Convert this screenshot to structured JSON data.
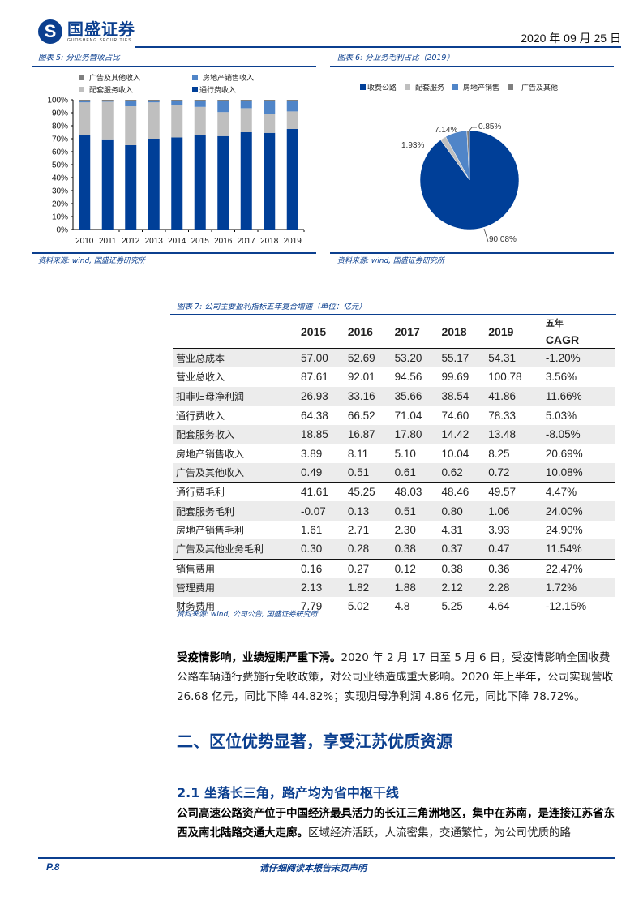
{
  "header": {
    "logo_cn": "国盛证券",
    "logo_en": "GUOSHENG SECURITIES",
    "date": "2020 年 09 月 25 日"
  },
  "figure5": {
    "title": "图表 5:  分业务营收占比",
    "source": "资料来源:  wind,  国盛证券研究所",
    "legend": [
      "广告及其他收入",
      "房地产销售收入",
      "配套服务收入",
      "通行费收入"
    ]
  },
  "figure6": {
    "title": "图表 6:  分业务毛利占比（2019）",
    "source": "资料来源:  wind,  国盛证券研究所",
    "legend": [
      "收费公路",
      "配套服务",
      "房地产销售",
      "广告及其他"
    ]
  },
  "chart_data": [
    {
      "type": "bar",
      "stacked": true,
      "title": "分业务营收占比",
      "categories": [
        "2010",
        "2011",
        "2012",
        "2013",
        "2014",
        "2015",
        "2016",
        "2017",
        "2018",
        "2019"
      ],
      "yticks": [
        "0%",
        "10%",
        "20%",
        "30%",
        "40%",
        "50%",
        "60%",
        "70%",
        "80%",
        "90%",
        "100%"
      ],
      "ylim": [
        0,
        100
      ],
      "series": [
        {
          "name": "通行费收入",
          "color": "#003f98",
          "values": [
            73,
            69.5,
            65,
            70,
            71,
            73,
            72,
            75,
            74.5,
            77.5
          ]
        },
        {
          "name": "配套服务收入",
          "color": "#bfbfbf",
          "values": [
            25,
            29,
            30,
            28,
            25,
            21.5,
            18.5,
            18.5,
            14.5,
            13.5
          ]
        },
        {
          "name": "房地产销售收入",
          "color": "#5085c8",
          "values": [
            1,
            0.5,
            4,
            1,
            3,
            4.5,
            8.5,
            5.5,
            10,
            8
          ]
        },
        {
          "name": "广告及其他收入",
          "color": "#7f7f7f",
          "values": [
            1,
            1,
            1,
            1,
            1,
            1,
            1,
            1,
            1,
            1
          ]
        }
      ]
    },
    {
      "type": "pie",
      "title": "分业务毛利占比（2019）",
      "labels": [
        "收费公路",
        "配套服务",
        "房地产销售",
        "广告及其他"
      ],
      "values": [
        90.08,
        1.93,
        7.14,
        0.85
      ],
      "colors": [
        "#003f98",
        "#bfbfbf",
        "#5085c8",
        "#7f7f7f"
      ],
      "data_labels": [
        "90.08%",
        "1.93%",
        "7.14%",
        "0.85%"
      ]
    }
  ],
  "figure7": {
    "title": "图表 7:  公司主要盈利指标五年复合增速（单位：亿元）",
    "source": "资料来源:  wind,  公司公告,  国盛证券研究所",
    "headers": [
      "",
      "2015",
      "2016",
      "2017",
      "2018",
      "2019",
      "五年",
      "CAGR"
    ],
    "rows": [
      [
        "营业总成本",
        "57.00",
        "52.69",
        "53.20",
        "55.17",
        "54.31",
        "-1.20%"
      ],
      [
        "营业总收入",
        "87.61",
        "92.01",
        "94.56",
        "99.69",
        "100.78",
        "3.56%"
      ],
      [
        "扣非归母净利润",
        "26.93",
        "33.16",
        "35.66",
        "38.54",
        "41.86",
        "11.66%"
      ],
      [
        "通行费收入",
        "64.38",
        "66.52",
        "71.04",
        "74.60",
        "78.33",
        "5.03%"
      ],
      [
        "配套服务收入",
        "18.85",
        "16.87",
        "17.80",
        "14.42",
        "13.48",
        "-8.05%"
      ],
      [
        "房地产销售收入",
        "3.89",
        "8.11",
        "5.10",
        "10.04",
        "8.25",
        "20.69%"
      ],
      [
        "广告及其他收入",
        "0.49",
        "0.51",
        "0.61",
        "0.62",
        "0.72",
        "10.08%"
      ],
      [
        "通行费毛利",
        "41.61",
        "45.25",
        "48.03",
        "48.46",
        "49.57",
        "4.47%"
      ],
      [
        "配套服务毛利",
        "-0.07",
        "0.13",
        "0.51",
        "0.80",
        "1.06",
        "24.00%"
      ],
      [
        "房地产销售毛利",
        "1.61",
        "2.71",
        "2.30",
        "4.31",
        "3.93",
        "24.90%"
      ],
      [
        "广告及其他业务毛利",
        "0.30",
        "0.28",
        "0.38",
        "0.37",
        "0.47",
        "11.54%"
      ],
      [
        "销售费用",
        "0.16",
        "0.27",
        "0.12",
        "0.38",
        "0.36",
        "22.47%"
      ],
      [
        "管理费用",
        "2.13",
        "1.82",
        "1.88",
        "2.12",
        "2.28",
        "1.72%"
      ],
      [
        "财务费用",
        "7.79",
        "5.02",
        "4.8",
        "5.25",
        "4.64",
        "-12.15%"
      ]
    ]
  },
  "body": {
    "para1_bold": "受疫情影响，业绩短期严重下滑。",
    "para1_text": "2020 年 2 月 17 日至 5 月 6 日，受疫情影响全国收费公路车辆通行费施行免收政策，对公司业绩造成重大影响。2020 年上半年，公司实现营收 26.68 亿元，同比下降 44.82%；实现归母净利润 4.86 亿元，同比下降 78.72%。",
    "h2": "二、区位优势显著，享受江苏优质资源",
    "h3": "2.1 坐落长三角，路产均为省中枢干线",
    "para2_bold": "公司高速公路资产位于中国经济最具活力的长江三角洲地区，集中在苏南，是连接江苏省东西及南北陆路交通大走廊。",
    "para2_text": "区域经济活跃，人流密集，交通繁忙，为公司优质的路"
  },
  "footer": {
    "page": "P.8",
    "notice": "请仔细阅读本报告末页声明"
  }
}
